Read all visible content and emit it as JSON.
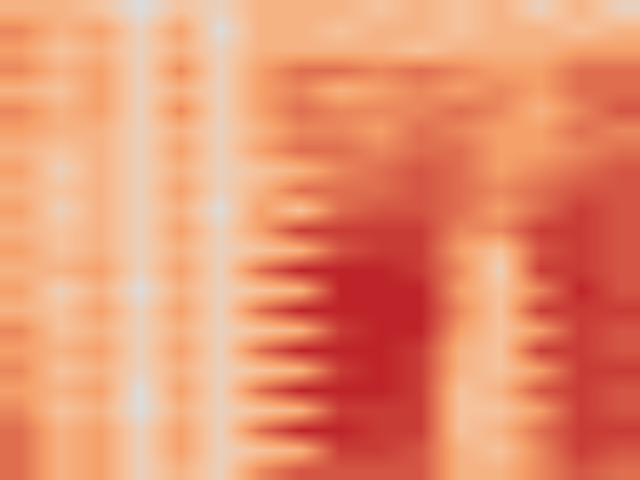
{
  "chart_data": {
    "type": "heatmap",
    "color": "Plasma",
    "tick_labels": false,
    "zlim": [
      0,
      1
    ],
    "cells": [
      [
        0.3,
        0.3,
        0.2,
        0.0,
        0.2,
        0.1,
        0.3,
        0.3,
        0.3,
        0.2,
        0.3,
        0.2,
        0.3,
        0.1,
        0.3,
        0.1
      ],
      [
        0.5,
        0.3,
        0.4,
        0.1,
        0.4,
        0.0,
        0.3,
        0.3,
        0.2,
        0.3,
        0.3,
        0.2,
        0.3,
        0.3,
        0.2,
        0.3
      ],
      [
        0.4,
        0.2,
        0.3,
        0.1,
        0.3,
        0.1,
        0.3,
        0.3,
        0.3,
        0.3,
        0.2,
        0.3,
        0.3,
        0.3,
        0.4,
        0.4
      ],
      [
        0.5,
        0.3,
        0.4,
        0.1,
        0.5,
        0.1,
        0.4,
        0.6,
        0.6,
        0.5,
        0.6,
        0.5,
        0.4,
        0.4,
        0.6,
        0.6
      ],
      [
        0.3,
        0.2,
        0.4,
        0.1,
        0.3,
        0.1,
        0.4,
        0.5,
        0.3,
        0.4,
        0.5,
        0.4,
        0.5,
        0.4,
        0.6,
        0.6
      ],
      [
        0.5,
        0.3,
        0.4,
        0.1,
        0.5,
        0.1,
        0.4,
        0.6,
        0.5,
        0.5,
        0.5,
        0.6,
        0.5,
        0.3,
        0.5,
        0.7
      ],
      [
        0.4,
        0.3,
        0.3,
        0.1,
        0.3,
        0.1,
        0.3,
        0.5,
        0.5,
        0.4,
        0.6,
        0.5,
        0.4,
        0.4,
        0.6,
        0.5
      ],
      [
        0.3,
        0.2,
        0.3,
        0.1,
        0.4,
        0.1,
        0.4,
        0.6,
        0.6,
        0.5,
        0.6,
        0.6,
        0.4,
        0.4,
        0.5,
        0.6
      ],
      [
        0.4,
        0.1,
        0.3,
        0.1,
        0.3,
        0.1,
        0.2,
        0.3,
        0.5,
        0.6,
        0.7,
        0.6,
        0.4,
        0.5,
        0.6,
        0.7
      ],
      [
        0.3,
        0.2,
        0.3,
        0.1,
        0.4,
        0.1,
        0.3,
        0.6,
        0.6,
        0.6,
        0.7,
        0.6,
        0.5,
        0.6,
        0.7,
        0.7
      ],
      [
        0.4,
        0.1,
        0.3,
        0.1,
        0.3,
        0.0,
        0.4,
        0.2,
        0.6,
        0.7,
        0.7,
        0.6,
        0.4,
        0.6,
        0.8,
        0.7
      ],
      [
        0.3,
        0.2,
        0.3,
        0.1,
        0.4,
        0.1,
        0.4,
        0.8,
        0.8,
        0.8,
        0.8,
        0.5,
        0.5,
        0.8,
        0.8,
        0.7
      ],
      [
        0.4,
        0.2,
        0.3,
        0.1,
        0.3,
        0.1,
        0.2,
        0.3,
        0.7,
        0.8,
        0.8,
        0.4,
        0.2,
        0.7,
        0.8,
        0.7
      ],
      [
        0.3,
        0.3,
        0.4,
        0.1,
        0.4,
        0.1,
        0.6,
        0.9,
        0.9,
        0.9,
        0.8,
        0.5,
        0.1,
        0.8,
        0.8,
        0.7
      ],
      [
        0.4,
        0.1,
        0.3,
        0.0,
        0.3,
        0.1,
        0.2,
        0.3,
        0.9,
        0.9,
        0.9,
        0.4,
        0.2,
        0.5,
        0.9,
        0.7
      ],
      [
        0.3,
        0.2,
        0.4,
        0.1,
        0.4,
        0.1,
        0.6,
        0.9,
        0.9,
        0.9,
        0.9,
        0.5,
        0.2,
        0.8,
        0.8,
        0.8
      ],
      [
        0.5,
        0.2,
        0.3,
        0.1,
        0.3,
        0.1,
        0.2,
        0.3,
        0.8,
        0.9,
        0.9,
        0.4,
        0.2,
        0.4,
        0.8,
        0.7
      ],
      [
        0.4,
        0.3,
        0.4,
        0.1,
        0.4,
        0.1,
        0.6,
        0.9,
        0.9,
        0.9,
        0.8,
        0.3,
        0.2,
        0.8,
        0.8,
        0.7
      ],
      [
        0.5,
        0.2,
        0.3,
        0.1,
        0.3,
        0.1,
        0.2,
        0.3,
        0.8,
        0.9,
        0.8,
        0.3,
        0.2,
        0.4,
        0.8,
        0.8
      ],
      [
        0.4,
        0.3,
        0.4,
        0.0,
        0.4,
        0.1,
        0.6,
        0.9,
        0.9,
        0.9,
        0.8,
        0.2,
        0.3,
        0.7,
        0.8,
        0.7
      ],
      [
        0.5,
        0.2,
        0.3,
        0.0,
        0.3,
        0.1,
        0.2,
        0.3,
        0.8,
        0.8,
        0.8,
        0.2,
        0.2,
        0.4,
        0.8,
        0.7
      ],
      [
        0.6,
        0.3,
        0.4,
        0.1,
        0.4,
        0.1,
        0.6,
        0.9,
        0.9,
        0.8,
        0.8,
        0.2,
        0.3,
        0.6,
        0.8,
        0.8
      ],
      [
        0.6,
        0.3,
        0.4,
        0.1,
        0.4,
        0.1,
        0.2,
        0.3,
        0.8,
        0.8,
        0.7,
        0.3,
        0.2,
        0.5,
        0.8,
        0.7
      ],
      [
        0.6,
        0.3,
        0.4,
        0.1,
        0.3,
        0.1,
        0.5,
        0.7,
        0.7,
        0.7,
        0.7,
        0.3,
        0.3,
        0.5,
        0.7,
        0.6
      ]
    ]
  }
}
